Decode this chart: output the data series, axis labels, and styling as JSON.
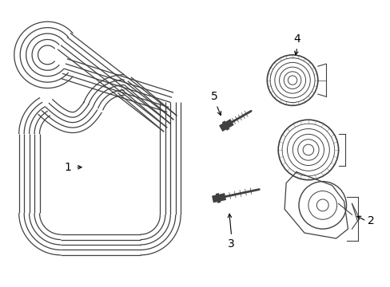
{
  "background_color": "#ffffff",
  "line_color": "#404040",
  "label_color": "#000000",
  "figsize": [
    4.89,
    3.6
  ],
  "dpi": 100,
  "n_ribs": 5,
  "belt_lw": 0.9
}
